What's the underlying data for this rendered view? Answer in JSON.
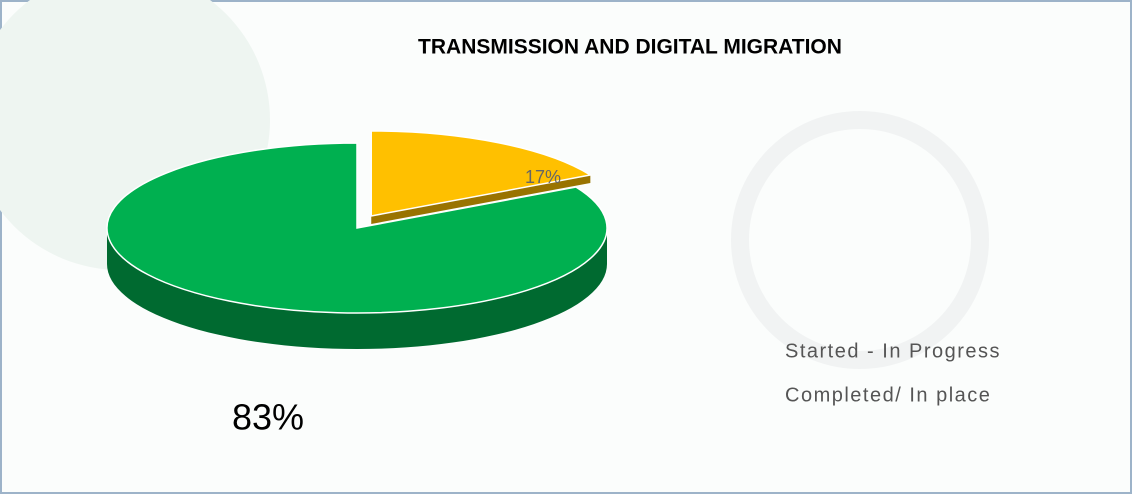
{
  "chart_data": {
    "type": "pie",
    "title": "TRANSMISSION AND DIGITAL MIGRATION",
    "categories": [
      "Started - In Progress",
      "Completed/ In place"
    ],
    "values": [
      17,
      83
    ],
    "value_labels": [
      "17%",
      "83%"
    ],
    "colors": [
      "#ffc000",
      "#00b050"
    ],
    "legend": "right"
  }
}
